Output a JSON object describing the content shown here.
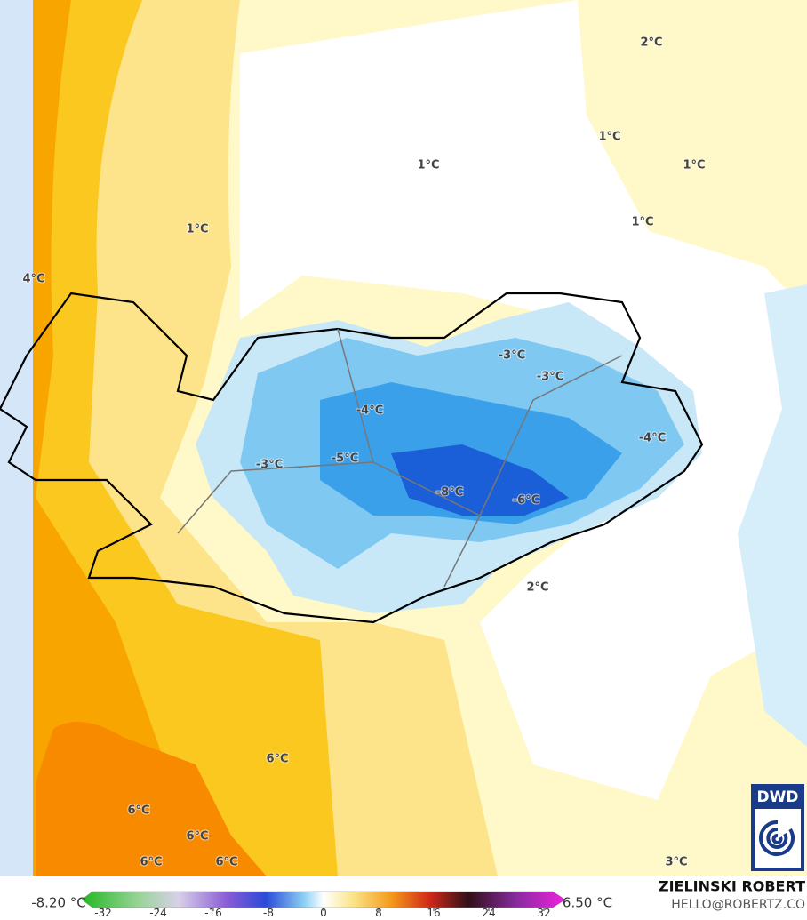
{
  "map": {
    "labels": [
      "2°C",
      "1°C",
      "1°C",
      "1°C",
      "1°C",
      "1°C",
      "4°C",
      "-3°C",
      "-3°C",
      "-4°C",
      "-4°C",
      "-3°C",
      "-5°C",
      "-8°C",
      "-6°C",
      "2°C",
      "6°C",
      "6°C",
      "6°C",
      "6°C",
      "6°C",
      "3°C"
    ],
    "logo": "DWD"
  },
  "legend": {
    "min_label": "-8.20 °C",
    "max_label": "6.50 °C",
    "ticks": [
      -32,
      -24,
      -16,
      -8,
      0,
      8,
      16,
      24,
      32
    ]
  },
  "credit": {
    "author": "ZIELINSKI ROBERT",
    "email": "HELLO@ROBERTZ.CO"
  }
}
